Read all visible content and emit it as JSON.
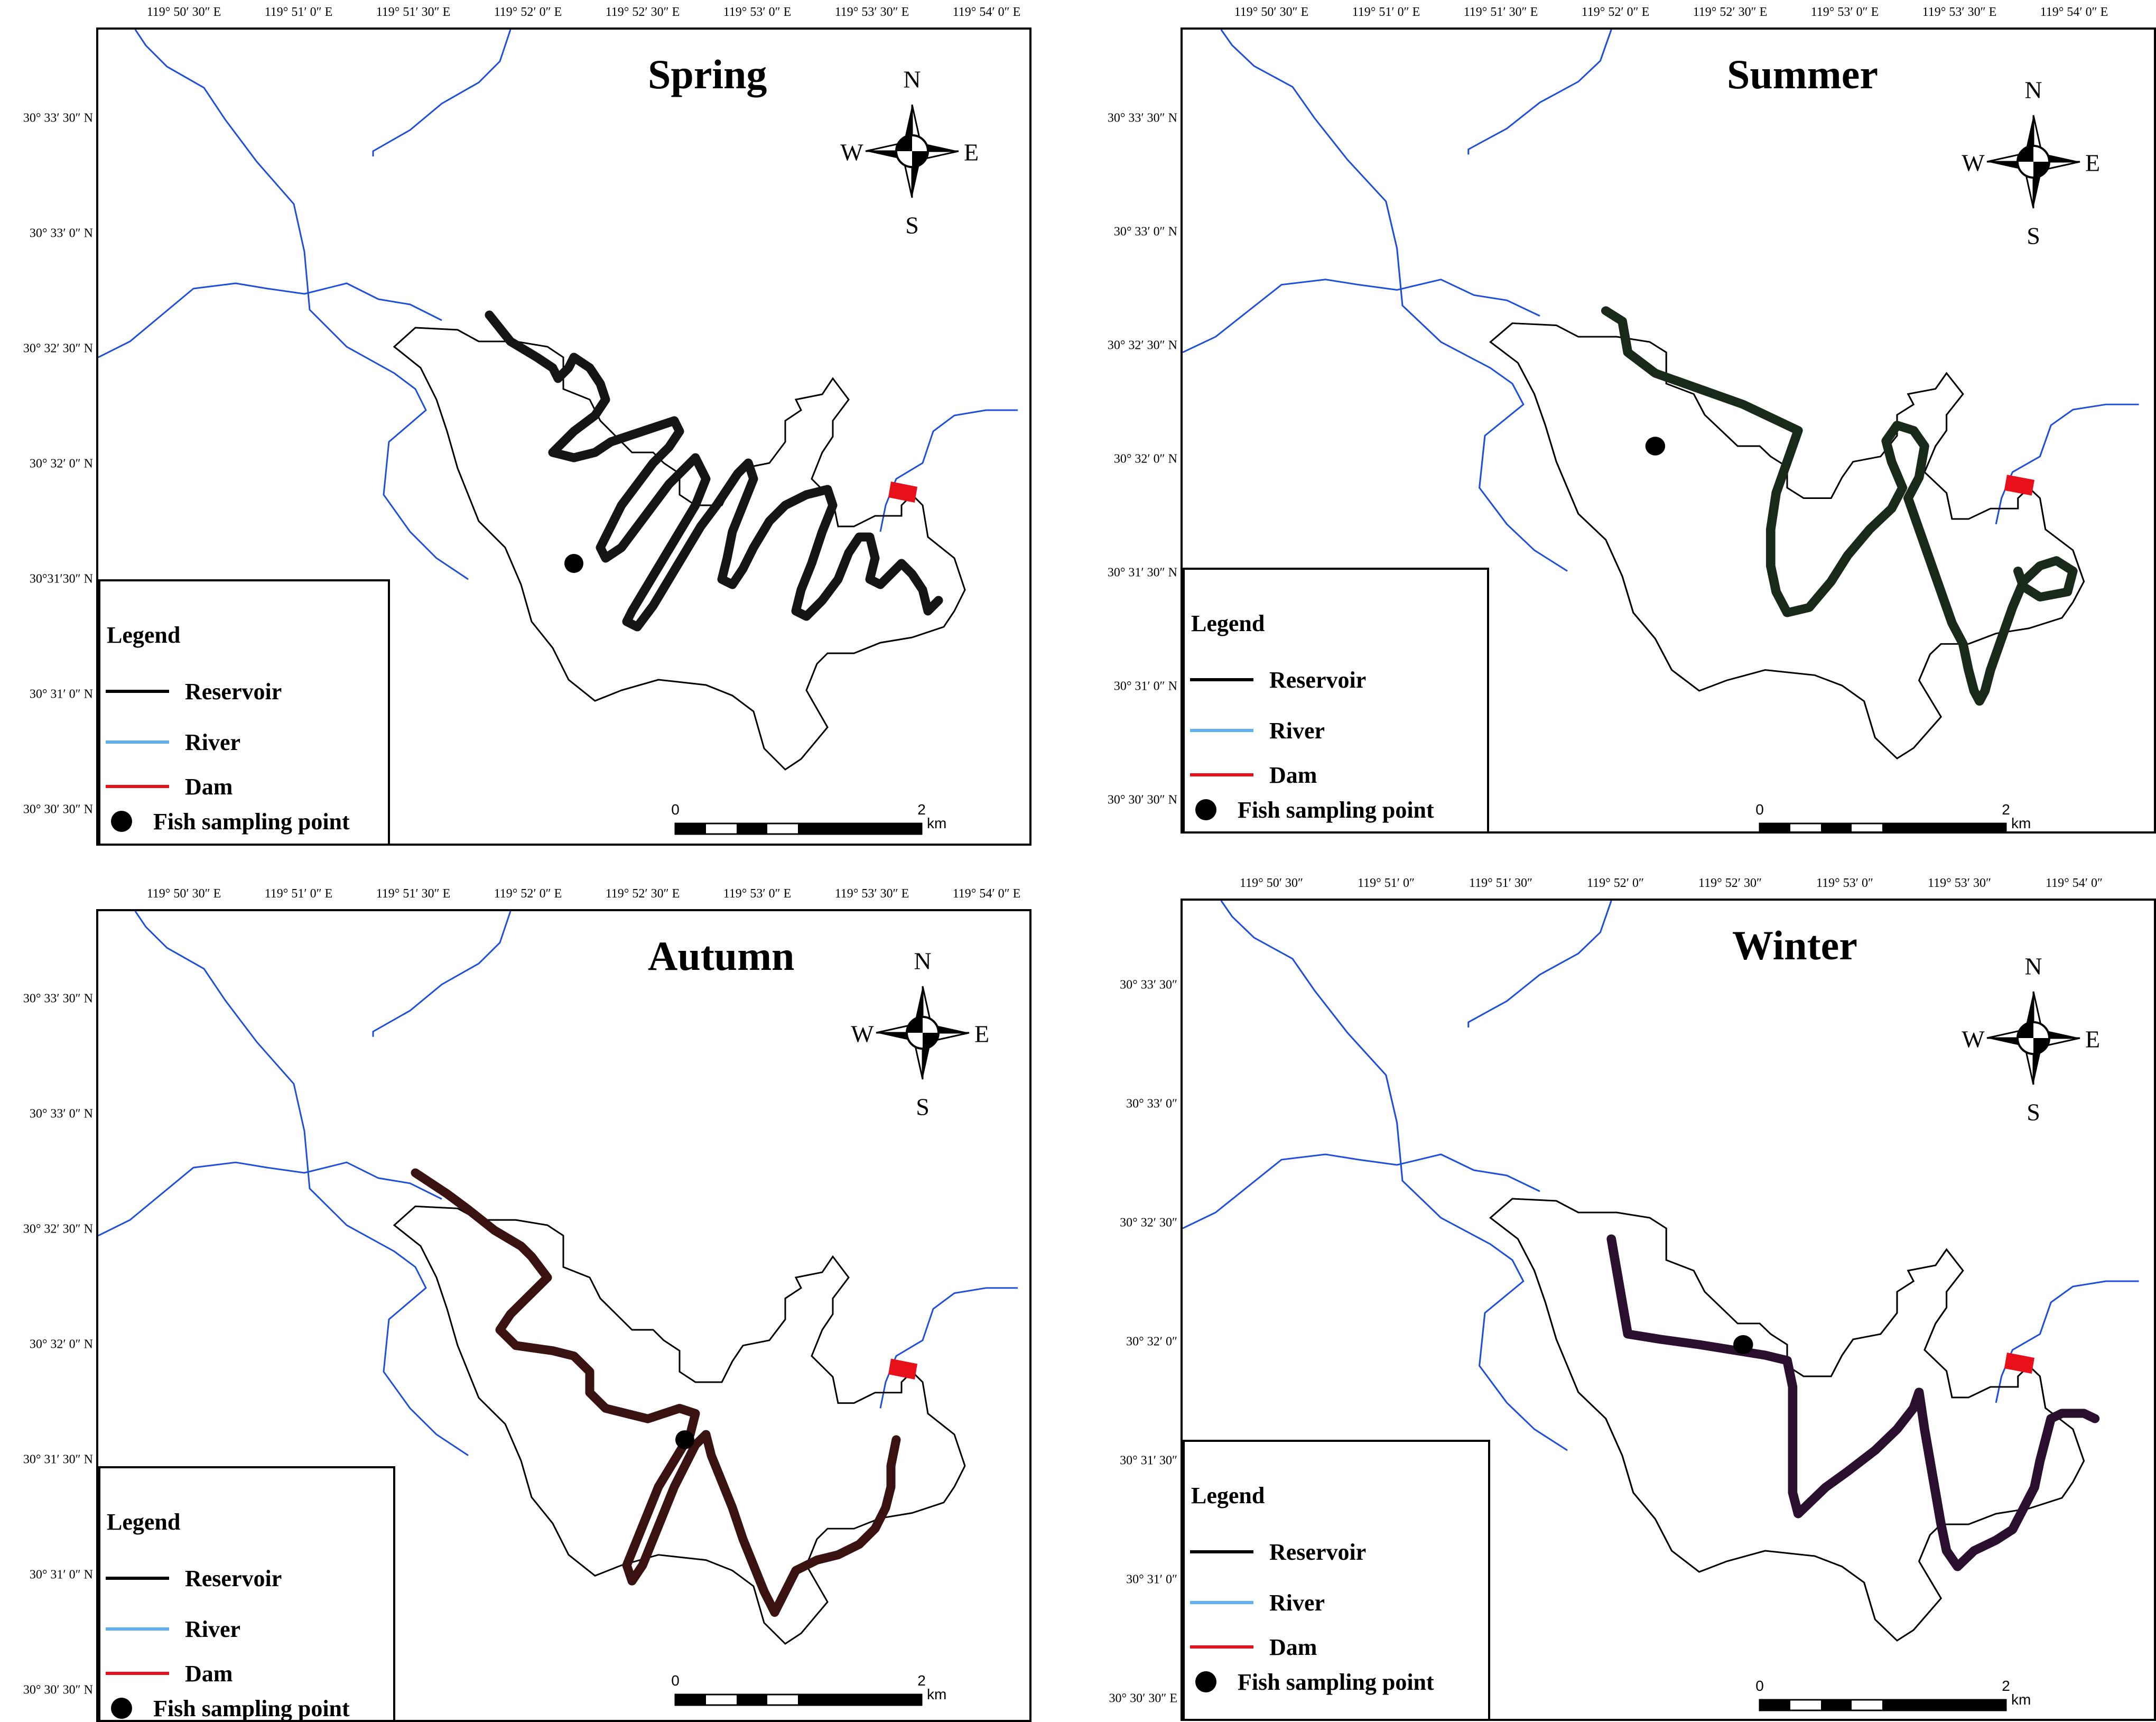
{
  "colors": {
    "reservoir": "#000000",
    "river": "#1f4fd8",
    "dam": "#e8101a",
    "track": "#111111",
    "legend_river": "#5fb0f0"
  },
  "panels": [
    {
      "season": "Spring",
      "lon_labels": [
        "119° 50′ 30″ E",
        "119° 51′ 0″ E",
        "119° 51′ 30″ E",
        "119° 52′ 0″ E",
        "119° 52′ 30″ E",
        "119° 53′ 0″ E",
        "119° 53′ 30″ E",
        "119° 54′ 0″ E"
      ],
      "lat_labels": [
        "30° 33′ 30″ N",
        "30° 33′ 0″ N",
        "30° 32′ 30″ N",
        "30° 32′ 0″ N",
        "30°31′30″ N",
        "30° 31′ 0″ N",
        "30° 30′ 30″ N"
      ],
      "compass": {
        "n": "N",
        "s": "S",
        "e": "E",
        "w": "W"
      },
      "legend": {
        "title": "Legend",
        "reservoir": "Reservoir",
        "river": "River",
        "dam": "Dam",
        "sampling": "Fish sampling point"
      },
      "scale": {
        "start": "0",
        "end": "2",
        "unit": "km"
      }
    },
    {
      "season": "Summer",
      "lon_labels": [
        "119° 50′ 30″ E",
        "119° 51′ 0″ E",
        "119° 51′ 30″ E",
        "119° 52′ 0″ E",
        "119° 52′ 30″ E",
        "119° 53′ 0″ E",
        "119° 53′ 30″ E",
        "119° 54′ 0″ E"
      ],
      "lat_labels": [
        "30° 33′ 30″ N",
        "30° 33′ 0″ N",
        "30° 32′ 30″ N",
        "30° 32′ 0″ N",
        "30° 31′ 30″ N",
        "30° 31′ 0″ N",
        "30° 30′ 30″ N"
      ],
      "compass": {
        "n": "N",
        "s": "S",
        "e": "E",
        "w": "W"
      },
      "legend": {
        "title": "Legend",
        "reservoir": "Reservoir",
        "river": "River",
        "dam": "Dam",
        "sampling": "Fish sampling point"
      },
      "scale": {
        "start": "0",
        "end": "2",
        "unit": "km"
      }
    },
    {
      "season": "Autumn",
      "lon_labels": [
        "119° 50′ 30″ E",
        "119° 51′ 0″ E",
        "119° 51′ 30″ E",
        "119° 52′ 0″ E",
        "119° 52′ 30″ E",
        "119° 53′ 0″ E",
        "119° 53′ 30″ E",
        "119° 54′ 0″ E"
      ],
      "lat_labels": [
        "30° 33′ 30″ N",
        "30° 33′ 0″ N",
        "30° 32′ 30″ N",
        "30° 32′ 0″ N",
        "30° 31′ 30″ N",
        "30° 31′ 0″ N",
        "30° 30′ 30″ N"
      ],
      "compass": {
        "n": "N",
        "s": "S",
        "e": "E",
        "w": "W"
      },
      "legend": {
        "title": "Legend",
        "reservoir": "Reservoir",
        "river": "River",
        "dam": "Dam",
        "sampling": "Fish sampling point"
      },
      "scale": {
        "start": "0",
        "end": "2",
        "unit": "km"
      }
    },
    {
      "season": "Winter",
      "lon_labels": [
        "119° 50′ 30″",
        "119° 51′ 0″",
        "119° 51′ 30″",
        "119° 52′ 0″",
        "119° 52′ 30″",
        "119° 53′ 0″",
        "119° 53′ 30″",
        "119° 54′ 0″"
      ],
      "lat_labels": [
        "30° 33′ 30″",
        "30° 33′ 0″",
        "30° 32′ 30″",
        "30° 32′ 0″",
        "30° 31′ 30″",
        "30° 31′ 0″",
        "30° 30′ 30″ E"
      ],
      "compass": {
        "n": "N",
        "s": "S",
        "e": "E",
        "w": "W"
      },
      "legend": {
        "title": "Legend",
        "reservoir": "Reservoir",
        "river": "River",
        "dam": "Dam",
        "sampling": "Fish sampling point"
      },
      "scale": {
        "start": "0",
        "end": "2",
        "unit": "km"
      }
    }
  ]
}
